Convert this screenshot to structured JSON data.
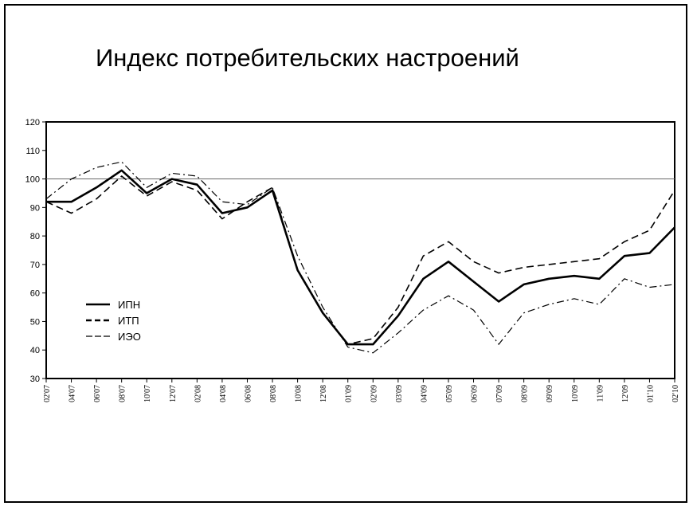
{
  "chart_data": {
    "type": "line",
    "title": "Индекс потребительских настроений",
    "xlabel": "",
    "ylabel": "",
    "ylim": [
      30,
      120
    ],
    "yticks": [
      "30",
      "40",
      "50",
      "60",
      "70",
      "80",
      "90",
      "100",
      "110",
      "120"
    ],
    "reference_line": 100,
    "categories": [
      "02'07",
      "04'07",
      "06'07",
      "08'07",
      "10'07",
      "12'07",
      "02'08",
      "04'08",
      "06'08",
      "08'08",
      "10'08",
      "12'08",
      "01'09",
      "02'09",
      "03'09",
      "04'09",
      "05'09",
      "06'09",
      "07'09",
      "08'09",
      "09'09",
      "10'09",
      "11'09",
      "12'09",
      "01'10",
      "02'10"
    ],
    "series": [
      {
        "name": "ИПН",
        "style": "solid",
        "values": [
          92,
          92,
          97,
          103,
          95,
          100,
          98,
          88,
          90,
          96,
          68,
          53,
          42,
          42,
          52,
          65,
          71,
          64,
          57,
          63,
          65,
          66,
          65,
          73,
          74,
          83
        ]
      },
      {
        "name": "ИТП",
        "style": "dashed",
        "values": [
          92,
          88,
          93,
          101,
          94,
          99,
          96,
          86,
          92,
          97,
          68,
          53,
          42,
          44,
          55,
          73,
          78,
          71,
          67,
          69,
          70,
          71,
          72,
          78,
          82,
          96
        ]
      },
      {
        "name": "ИЭО",
        "style": "dash-dot",
        "values": [
          93,
          100,
          104,
          106,
          97,
          102,
          101,
          92,
          91,
          97,
          73,
          55,
          41,
          39,
          46,
          54,
          59,
          54,
          42,
          53,
          56,
          58,
          56,
          65,
          62,
          63
        ]
      }
    ],
    "legend_position": "left-center",
    "grid": false
  }
}
